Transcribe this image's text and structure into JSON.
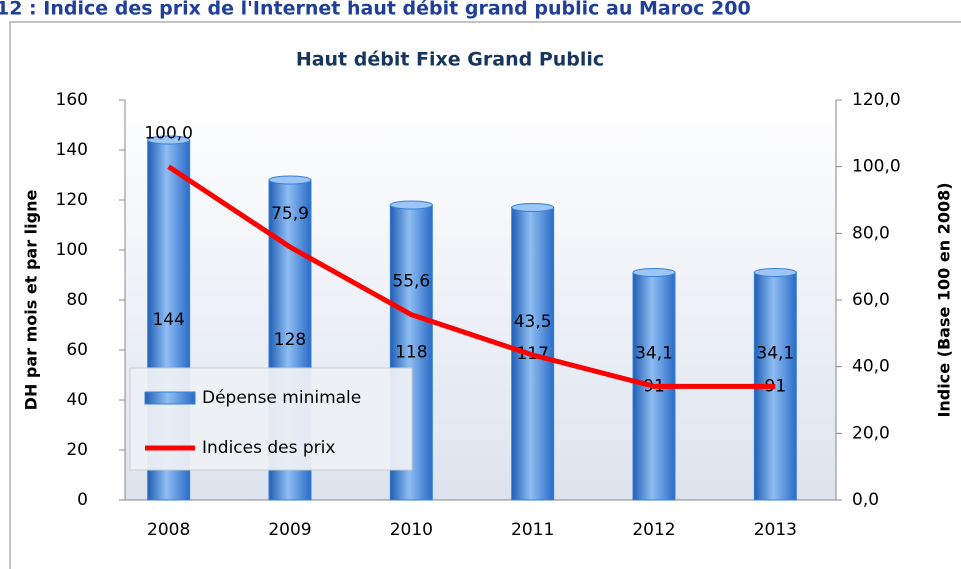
{
  "header": {
    "caption": "12 : Indice des prix de l'Internet haut débit grand public au Maroc 200"
  },
  "chart_data": {
    "type": "bar",
    "title": "Haut débit Fixe Grand Public",
    "categories": [
      "2008",
      "2009",
      "2010",
      "2011",
      "2012",
      "2013"
    ],
    "series": [
      {
        "name": "Dépense minimale",
        "type": "bar",
        "color": "#3a7fd5",
        "values": [
          144,
          128,
          118,
          117,
          91,
          91
        ]
      },
      {
        "name": "Indices des prix",
        "type": "line",
        "axis": "y2",
        "color": "#ff0000",
        "values": [
          100,
          75.9,
          55.6,
          43.5,
          34.1,
          34.1
        ],
        "value_labels": [
          "100,0",
          "75,9",
          "55,6",
          "43,5",
          "34,1",
          "34,1"
        ]
      }
    ],
    "ylabel": "DH par mois et par ligne",
    "y2label": "Indice (Base 100 en 2008)",
    "ylim": [
      0,
      160
    ],
    "yticks": [
      0,
      20,
      40,
      60,
      80,
      100,
      120,
      140,
      160
    ],
    "y2lim": [
      0,
      120
    ],
    "y2ticks": [
      {
        "value": 0,
        "label": "0,0"
      },
      {
        "value": 20,
        "label": "20,0"
      },
      {
        "value": 40,
        "label": "40,0"
      },
      {
        "value": 60,
        "label": "60,0"
      },
      {
        "value": 80,
        "label": "80,0"
      },
      {
        "value": 100,
        "label": "100,0"
      },
      {
        "value": 120,
        "label": "120,0"
      }
    ],
    "legend": "bottom-left"
  }
}
